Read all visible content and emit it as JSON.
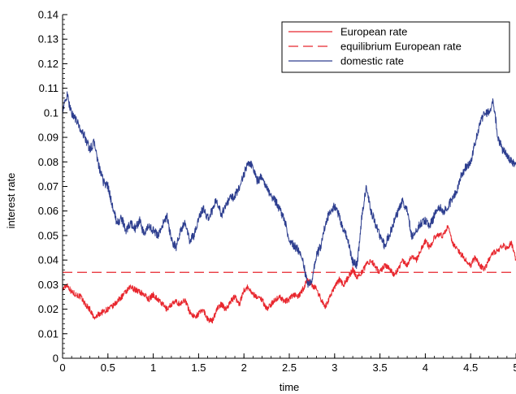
{
  "chart_data": {
    "type": "line",
    "title": "",
    "xlabel": "time",
    "ylabel": "interest rate",
    "xlim": [
      0,
      5
    ],
    "ylim": [
      0,
      0.14
    ],
    "x_ticks": [
      0,
      0.5,
      1,
      1.5,
      2,
      2.5,
      3,
      3.5,
      4,
      4.5,
      5
    ],
    "x_tick_labels": [
      "0",
      "0.5",
      "1",
      "1.5",
      "2",
      "2.5",
      "3",
      "3.5",
      "4",
      "4.5",
      "5"
    ],
    "y_ticks": [
      0,
      0.01,
      0.02,
      0.03,
      0.04,
      0.05,
      0.06,
      0.07,
      0.08,
      0.09,
      0.1,
      0.11,
      0.12,
      0.13,
      0.14
    ],
    "y_tick_labels": [
      "0",
      "0.01",
      "0.02",
      "0.03",
      "0.04",
      "0.05",
      "0.06",
      "0.07",
      "0.08",
      "0.09",
      "0.1",
      "0.11",
      "0.12",
      "0.13",
      "0.14"
    ],
    "grid": false,
    "legend_position": "top-right",
    "series": [
      {
        "name": "European rate",
        "color": "#e8262d",
        "style": "solid",
        "x": [
          0,
          0.05,
          0.1,
          0.15,
          0.2,
          0.25,
          0.3,
          0.35,
          0.4,
          0.45,
          0.5,
          0.55,
          0.6,
          0.65,
          0.7,
          0.75,
          0.8,
          0.85,
          0.9,
          0.95,
          1.0,
          1.05,
          1.1,
          1.15,
          1.2,
          1.25,
          1.3,
          1.35,
          1.4,
          1.45,
          1.5,
          1.55,
          1.6,
          1.65,
          1.7,
          1.75,
          1.8,
          1.85,
          1.9,
          1.95,
          2.0,
          2.05,
          2.1,
          2.15,
          2.2,
          2.25,
          2.3,
          2.35,
          2.4,
          2.45,
          2.5,
          2.55,
          2.6,
          2.65,
          2.7,
          2.75,
          2.8,
          2.85,
          2.9,
          2.95,
          3.0,
          3.05,
          3.1,
          3.15,
          3.2,
          3.25,
          3.3,
          3.35,
          3.4,
          3.45,
          3.5,
          3.55,
          3.6,
          3.65,
          3.7,
          3.75,
          3.8,
          3.85,
          3.9,
          3.95,
          4.0,
          4.05,
          4.1,
          4.15,
          4.2,
          4.25,
          4.3,
          4.35,
          4.4,
          4.45,
          4.5,
          4.55,
          4.6,
          4.65,
          4.7,
          4.75,
          4.8,
          4.85,
          4.9,
          4.95,
          5.0
        ],
        "values": [
          0.028,
          0.03,
          0.027,
          0.026,
          0.025,
          0.022,
          0.02,
          0.016,
          0.018,
          0.019,
          0.02,
          0.021,
          0.023,
          0.025,
          0.027,
          0.029,
          0.028,
          0.027,
          0.026,
          0.024,
          0.026,
          0.024,
          0.022,
          0.02,
          0.022,
          0.023,
          0.022,
          0.024,
          0.019,
          0.017,
          0.018,
          0.02,
          0.016,
          0.015,
          0.02,
          0.022,
          0.02,
          0.023,
          0.025,
          0.022,
          0.028,
          0.029,
          0.026,
          0.025,
          0.024,
          0.02,
          0.022,
          0.024,
          0.025,
          0.023,
          0.024,
          0.026,
          0.025,
          0.028,
          0.032,
          0.03,
          0.028,
          0.024,
          0.021,
          0.025,
          0.029,
          0.032,
          0.03,
          0.033,
          0.036,
          0.033,
          0.035,
          0.038,
          0.04,
          0.037,
          0.035,
          0.038,
          0.037,
          0.034,
          0.036,
          0.04,
          0.038,
          0.042,
          0.04,
          0.044,
          0.048,
          0.045,
          0.049,
          0.05,
          0.05,
          0.054,
          0.047,
          0.045,
          0.042,
          0.04,
          0.038,
          0.041,
          0.038,
          0.036,
          0.04,
          0.043,
          0.044,
          0.046,
          0.045,
          0.047,
          0.04
        ]
      },
      {
        "name": "equilibrium European rate",
        "color": "#e8262d",
        "style": "dashed",
        "x": [
          0,
          5
        ],
        "values": [
          0.035,
          0.035
        ]
      },
      {
        "name": "domestic rate",
        "color": "#2d3e8f",
        "style": "solid",
        "x": [
          0,
          0.05,
          0.1,
          0.15,
          0.2,
          0.25,
          0.3,
          0.35,
          0.4,
          0.45,
          0.5,
          0.55,
          0.6,
          0.65,
          0.7,
          0.75,
          0.8,
          0.85,
          0.9,
          0.95,
          1.0,
          1.05,
          1.1,
          1.15,
          1.2,
          1.25,
          1.3,
          1.35,
          1.4,
          1.45,
          1.5,
          1.55,
          1.6,
          1.65,
          1.7,
          1.75,
          1.8,
          1.85,
          1.9,
          1.95,
          2.0,
          2.05,
          2.1,
          2.15,
          2.2,
          2.25,
          2.3,
          2.35,
          2.4,
          2.45,
          2.5,
          2.55,
          2.6,
          2.65,
          2.7,
          2.75,
          2.8,
          2.85,
          2.9,
          2.95,
          3.0,
          3.05,
          3.1,
          3.15,
          3.2,
          3.25,
          3.3,
          3.35,
          3.4,
          3.45,
          3.5,
          3.55,
          3.6,
          3.65,
          3.7,
          3.75,
          3.8,
          3.85,
          3.9,
          3.95,
          4.0,
          4.05,
          4.1,
          4.15,
          4.2,
          4.25,
          4.3,
          4.35,
          4.4,
          4.45,
          4.5,
          4.55,
          4.6,
          4.65,
          4.7,
          4.75,
          4.8,
          4.85,
          4.9,
          4.95,
          5.0
        ],
        "values": [
          0.101,
          0.107,
          0.1,
          0.097,
          0.093,
          0.09,
          0.085,
          0.088,
          0.078,
          0.072,
          0.07,
          0.062,
          0.055,
          0.057,
          0.052,
          0.055,
          0.053,
          0.056,
          0.05,
          0.054,
          0.052,
          0.05,
          0.054,
          0.058,
          0.048,
          0.045,
          0.052,
          0.055,
          0.048,
          0.05,
          0.057,
          0.061,
          0.057,
          0.06,
          0.065,
          0.058,
          0.063,
          0.065,
          0.066,
          0.07,
          0.075,
          0.08,
          0.078,
          0.072,
          0.074,
          0.07,
          0.066,
          0.064,
          0.06,
          0.056,
          0.048,
          0.046,
          0.044,
          0.04,
          0.03,
          0.032,
          0.042,
          0.046,
          0.055,
          0.06,
          0.062,
          0.058,
          0.052,
          0.048,
          0.039,
          0.038,
          0.058,
          0.07,
          0.06,
          0.055,
          0.05,
          0.046,
          0.05,
          0.055,
          0.06,
          0.064,
          0.06,
          0.05,
          0.052,
          0.055,
          0.056,
          0.054,
          0.058,
          0.062,
          0.06,
          0.062,
          0.065,
          0.068,
          0.075,
          0.078,
          0.08,
          0.088,
          0.095,
          0.1,
          0.1,
          0.105,
          0.09,
          0.085,
          0.083,
          0.08,
          0.079
        ]
      }
    ]
  }
}
